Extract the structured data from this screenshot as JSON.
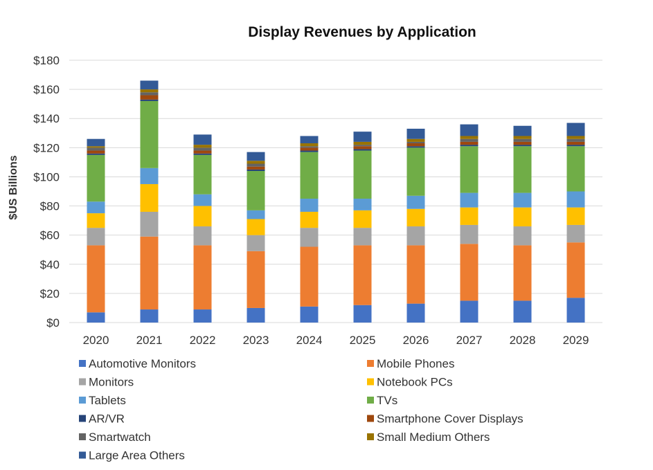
{
  "chart_data": {
    "type": "bar",
    "stacked": true,
    "title": "Display Revenues by Application",
    "xlabel": "",
    "ylabel": "$US Billions",
    "ylim": [
      0,
      180
    ],
    "yticks": [
      0,
      20,
      40,
      60,
      80,
      100,
      120,
      140,
      160,
      180
    ],
    "ytick_labels": [
      "$0",
      "$20",
      "$40",
      "$60",
      "$80",
      "$100",
      "$120",
      "$140",
      "$160",
      "$180"
    ],
    "grid": true,
    "legend_position": "bottom",
    "categories": [
      "2020",
      "2021",
      "2022",
      "2023",
      "2024",
      "2025",
      "2026",
      "2027",
      "2028",
      "2029"
    ],
    "series": [
      {
        "name": "Automotive Monitors",
        "color": "#4472c4",
        "values": [
          7,
          9,
          9,
          10,
          11,
          12,
          13,
          15,
          15,
          17
        ]
      },
      {
        "name": "Mobile Phones",
        "color": "#ed7d31",
        "values": [
          46,
          50,
          44,
          39,
          41,
          41,
          40,
          39,
          38,
          38
        ]
      },
      {
        "name": "Monitors",
        "color": "#a5a5a5",
        "values": [
          12,
          17,
          13,
          11,
          13,
          12,
          13,
          13,
          13,
          12
        ]
      },
      {
        "name": "Notebook PCs",
        "color": "#ffc000",
        "values": [
          10,
          19,
          14,
          11,
          11,
          12,
          12,
          12,
          13,
          12
        ]
      },
      {
        "name": "Tablets",
        "color": "#5b9bd5",
        "values": [
          8,
          11,
          8,
          6,
          9,
          8,
          9,
          10,
          10,
          11
        ]
      },
      {
        "name": "TVs",
        "color": "#70ad47",
        "values": [
          32,
          46,
          27,
          27,
          32,
          33,
          33,
          32,
          32,
          31
        ]
      },
      {
        "name": "AR/VR",
        "color": "#264478",
        "values": [
          1,
          1,
          1,
          1,
          1,
          1,
          1,
          1,
          1,
          1
        ]
      },
      {
        "name": "Smartphone Cover Displays",
        "color": "#9e480e",
        "values": [
          2,
          3,
          2,
          2,
          2,
          2,
          2,
          2,
          2,
          2
        ]
      },
      {
        "name": "Smartwatch",
        "color": "#636363",
        "values": [
          2,
          2,
          2,
          2,
          1,
          1,
          1,
          2,
          2,
          2
        ]
      },
      {
        "name": "Small Medium Others",
        "color": "#997300",
        "values": [
          1,
          2,
          2,
          2,
          2,
          2,
          2,
          2,
          2,
          2
        ]
      },
      {
        "name": "Large Area Others",
        "color": "#335a96",
        "values": [
          5,
          6,
          7,
          6,
          5,
          7,
          7,
          8,
          7,
          9
        ]
      }
    ]
  }
}
